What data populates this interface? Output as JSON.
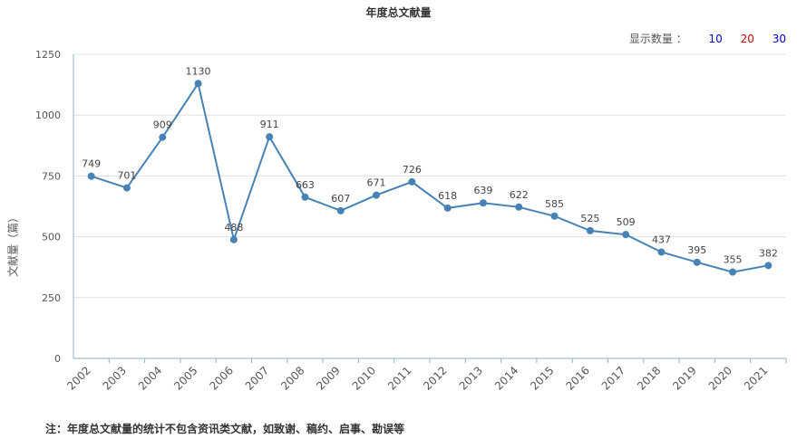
{
  "title": "年度总文献量",
  "count_selector": {
    "label": "显示数量 ：",
    "options": [
      {
        "label": "10",
        "color": "#0000cc"
      },
      {
        "label": "20",
        "color": "#cc0000"
      },
      {
        "label": "30",
        "color": "#0000cc"
      }
    ]
  },
  "footnote": "注：年度总文献量的统计不包含资讯类文献，如致谢、稿约、启事、勘误等",
  "chart_data": {
    "type": "line",
    "ylabel": "文献量（篇）",
    "xlabel": "",
    "ylim": [
      0,
      1250
    ],
    "yticks": [
      0,
      250,
      500,
      750,
      1000,
      1250
    ],
    "grid": true,
    "line_color": "#4682b4",
    "categories": [
      "2002",
      "2003",
      "2004",
      "2005",
      "2006",
      "2007",
      "2008",
      "2009",
      "2010",
      "2011",
      "2012",
      "2013",
      "2014",
      "2015",
      "2016",
      "2017",
      "2018",
      "2019",
      "2020",
      "2021"
    ],
    "values": [
      749,
      701,
      909,
      1130,
      488,
      911,
      663,
      607,
      671,
      726,
      618,
      639,
      622,
      585,
      525,
      509,
      437,
      395,
      355,
      382
    ]
  }
}
